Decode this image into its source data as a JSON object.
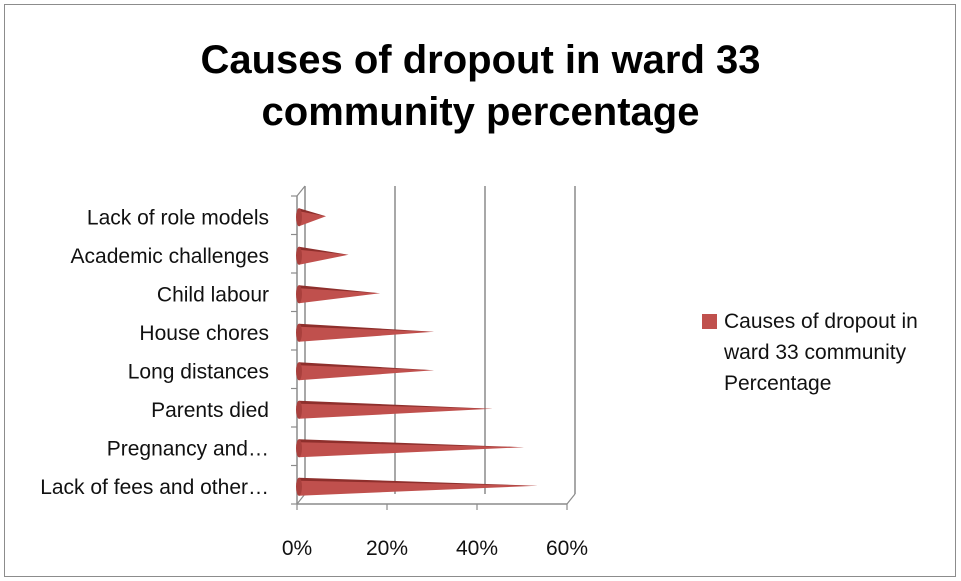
{
  "chart_data": {
    "type": "bar",
    "orientation": "horizontal",
    "style": "3d-cone",
    "title": "Causes of dropout in ward 33 community percentage",
    "title_lines": [
      "Causes of dropout in ward 33",
      "community percentage"
    ],
    "categories": [
      "Lack of role models",
      "Academic challenges",
      "Child labour",
      "House chores",
      "Long distances",
      "Parents died",
      "Pregnancy and…",
      "Lack of fees and other…"
    ],
    "series": [
      {
        "name": "Causes of dropout in ward 33 community Percentage",
        "color": "#c0504d",
        "values": [
          0.06,
          0.11,
          0.18,
          0.3,
          0.3,
          0.43,
          0.5,
          0.53
        ]
      }
    ],
    "x_ticks": [
      "0%",
      "20%",
      "40%",
      "60%"
    ],
    "xlim": [
      0,
      0.6
    ],
    "gridlines": true,
    "legend_position": "right"
  }
}
